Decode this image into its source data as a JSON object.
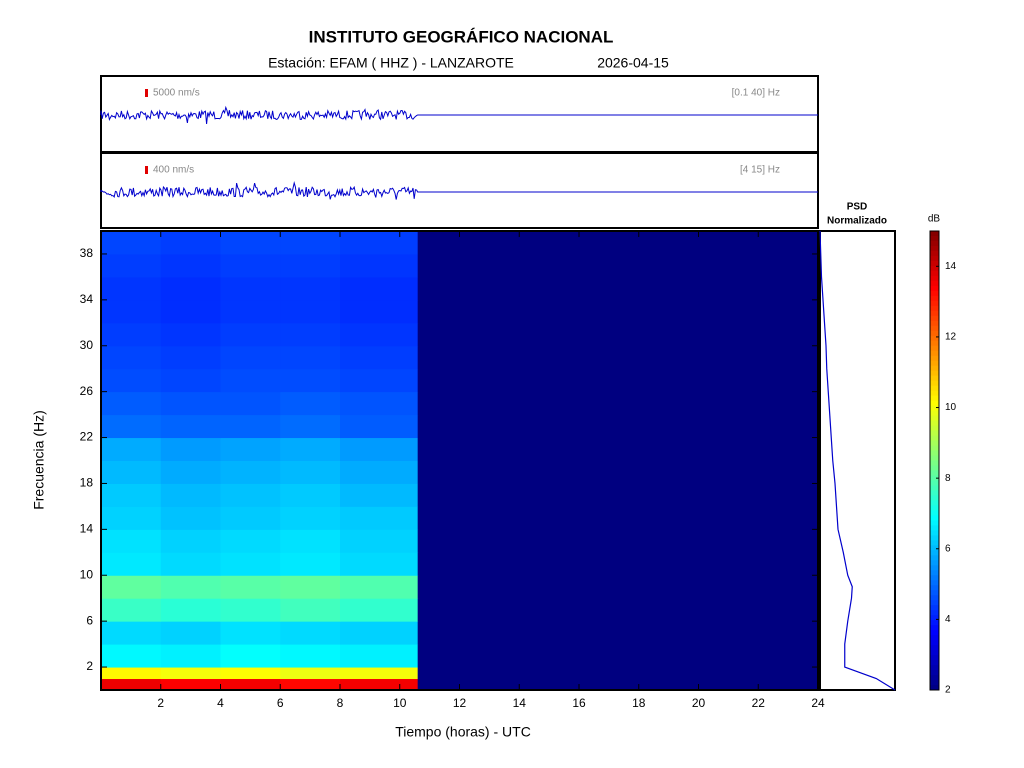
{
  "chart_data": [
    {
      "type": "heatmap",
      "title": "INSTITUTO GEOGRÁFICO NACIONAL",
      "subtitle": "Estación:  EFAM ( HHZ ) - LANZAROTE",
      "date": "2026-04-15",
      "x_label": "Tiempo (horas) - UTC",
      "y_label": "Frecuencia  (Hz)",
      "colormap": "jet",
      "x_edges": [
        0,
        2,
        4,
        6,
        8,
        10.6,
        24
      ],
      "y_edges": [
        0,
        1,
        2,
        4,
        6,
        8,
        10,
        12,
        14,
        16,
        18,
        20,
        22,
        24,
        26,
        28,
        30,
        32,
        34,
        36,
        38,
        40
      ],
      "z": [
        [
          13.6,
          13.4,
          13.5,
          13.3,
          13.5,
          2
        ],
        [
          10.2,
          10,
          10.1,
          9.9,
          10,
          2
        ],
        [
          6.8,
          6.7,
          6.9,
          6.8,
          6.7,
          2
        ],
        [
          6.4,
          6.3,
          6.5,
          6.4,
          6.3,
          2
        ],
        [
          7.6,
          7.4,
          7.5,
          7.7,
          7.5,
          2
        ],
        [
          8.1,
          7.9,
          8,
          8.1,
          7.9,
          2
        ],
        [
          6.6,
          6.4,
          6.5,
          6.6,
          6.4,
          2
        ],
        [
          6.5,
          6.3,
          6.4,
          6.5,
          6.3,
          2
        ],
        [
          6.3,
          6.1,
          6.2,
          6.3,
          6.2,
          2
        ],
        [
          6.2,
          6,
          6.1,
          6.2,
          6,
          2
        ],
        [
          6,
          5.8,
          5.9,
          6,
          5.8,
          2
        ],
        [
          5.8,
          5.6,
          5.7,
          5.8,
          5.6,
          2
        ],
        [
          5,
          4.9,
          4.9,
          5,
          4.8,
          2
        ],
        [
          4.8,
          4.7,
          4.7,
          4.8,
          4.7,
          2
        ],
        [
          4.6,
          4.5,
          4.6,
          4.6,
          4.5,
          2
        ],
        [
          4.5,
          4.4,
          4.5,
          4.5,
          4.4,
          2
        ],
        [
          4.4,
          4.3,
          4.4,
          4.4,
          4.3,
          2
        ],
        [
          4.3,
          4.2,
          4.3,
          4.3,
          4.2,
          2
        ],
        [
          4.3,
          4.2,
          4.3,
          4.3,
          4.2,
          2
        ],
        [
          4.4,
          4.3,
          4.4,
          4.4,
          4.3,
          2
        ],
        [
          4.5,
          4.4,
          4.5,
          4.5,
          4.4,
          2
        ]
      ],
      "xlim": [
        0,
        24
      ],
      "xticks": [
        2,
        4,
        6,
        8,
        10,
        12,
        14,
        16,
        18,
        20,
        22,
        24
      ],
      "ylim": [
        0,
        40
      ],
      "yticks": [
        2,
        6,
        10,
        14,
        18,
        22,
        26,
        30,
        34,
        38
      ],
      "clim": [
        2,
        15
      ],
      "cticks": [
        2,
        4,
        6,
        8,
        10,
        12,
        14
      ],
      "colorbar_label": "dB"
    },
    {
      "type": "psd",
      "title": "PSD",
      "subtitle": "Normalizado",
      "color": "#0000cc",
      "frequencies": [
        0,
        1,
        2,
        4,
        6,
        8,
        9,
        10,
        12,
        14,
        16,
        18,
        20,
        22,
        24,
        26,
        28,
        30,
        32,
        34,
        36,
        38,
        40
      ],
      "values": [
        1,
        0.75,
        0.33,
        0.33,
        0.37,
        0.42,
        0.43,
        0.37,
        0.31,
        0.24,
        0.22,
        0.2,
        0.17,
        0.15,
        0.13,
        0.11,
        0.09,
        0.08,
        0.06,
        0.04,
        0.02,
        0.01,
        0
      ],
      "xlim": [
        0,
        1
      ],
      "ylim": [
        0,
        40
      ]
    },
    {
      "type": "waveform",
      "color": "#0000cc",
      "panels": [
        {
          "scale_label": "5000 nm/s",
          "band_label": "[0.1 40] Hz"
        },
        {
          "scale_label": "400 nm/s",
          "band_label": "[4 15] Hz"
        }
      ]
    }
  ]
}
